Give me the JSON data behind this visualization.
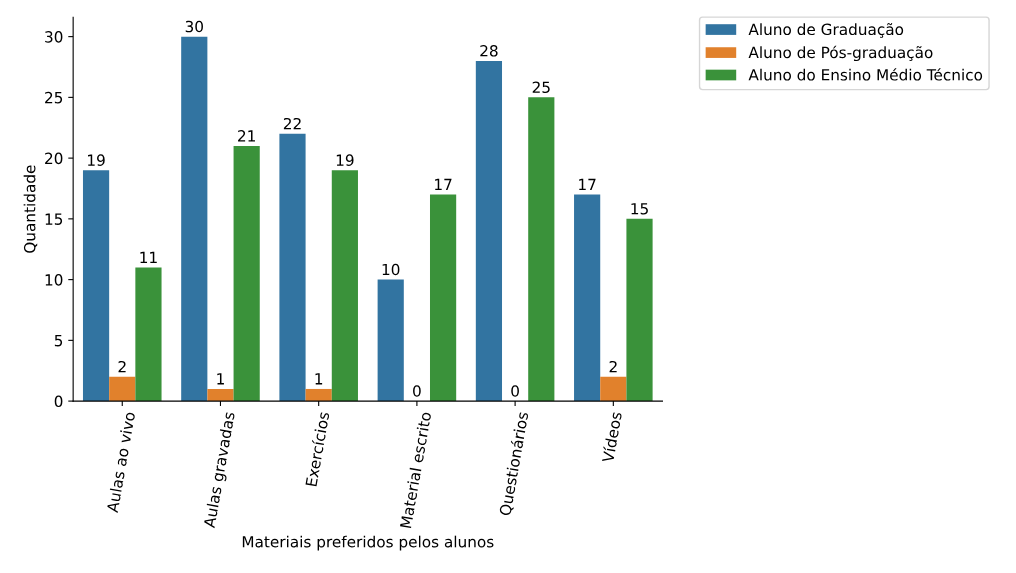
{
  "chart_data": {
    "type": "bar",
    "xlabel": "Materiais preferidos pelos alunos",
    "ylabel": "Quantidade",
    "categories": [
      "Aulas ao vivo",
      "Aulas gravadas",
      "Exercícios",
      "Material escrito",
      "Questionários",
      "Vídeos"
    ],
    "series": [
      {
        "name": "Aluno de Graduação",
        "color": "#3274a1",
        "values": [
          19,
          30,
          22,
          10,
          28,
          17
        ]
      },
      {
        "name": "Aluno de Pós-graduação",
        "color": "#e1812c",
        "values": [
          2,
          1,
          1,
          0,
          0,
          2
        ]
      },
      {
        "name": "Aluno do Ensino Médio Técnico",
        "color": "#3a923a",
        "values": [
          11,
          21,
          19,
          17,
          25,
          15
        ]
      }
    ],
    "ylim": [
      0,
      31.6
    ],
    "yticks": [
      0,
      5,
      10,
      15,
      20,
      25,
      30
    ],
    "data_labels": true,
    "grid": false,
    "legend": "top right"
  }
}
